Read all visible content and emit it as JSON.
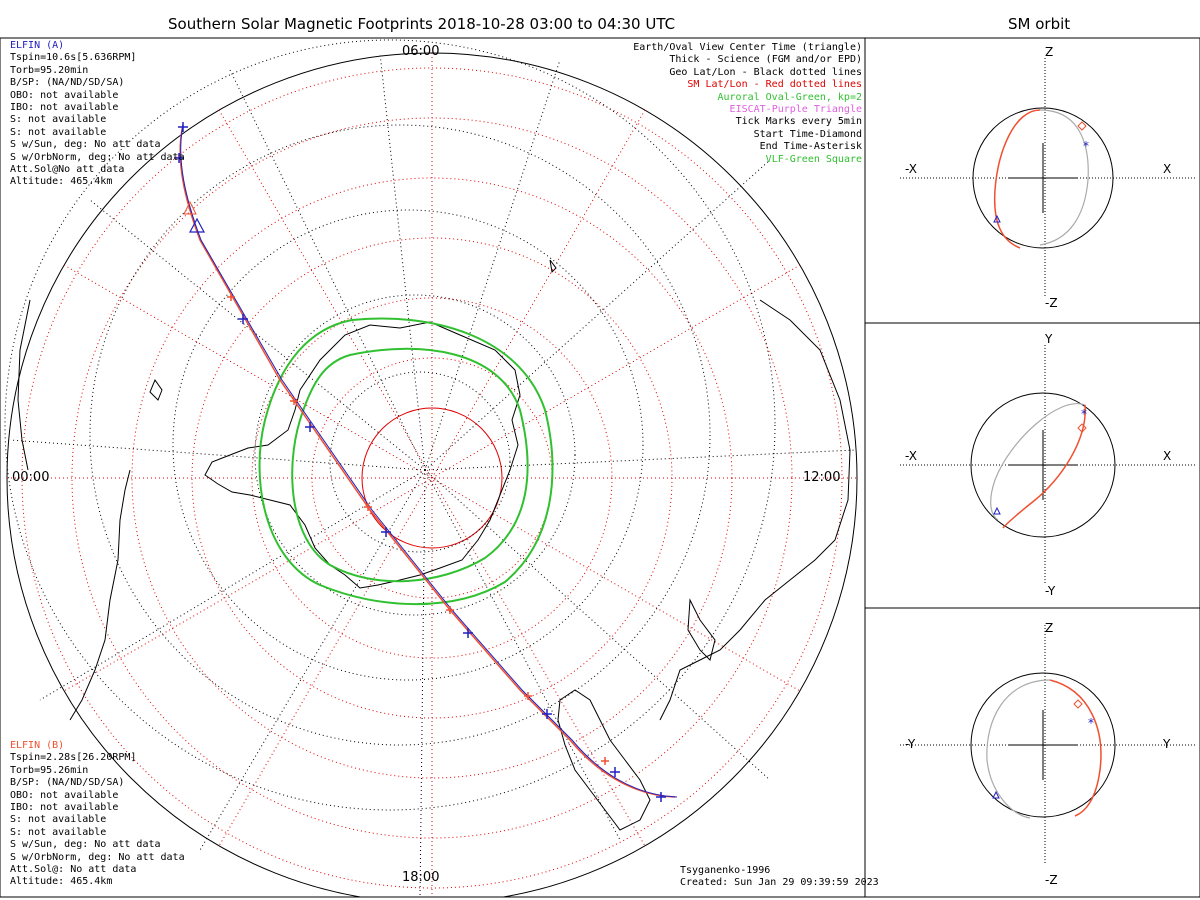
{
  "title": "Southern Solar Magnetic Footprints 2018-10-28 03:00 to 04:30 UTC",
  "orbit_title": "SM orbit",
  "mlt_labels": {
    "top": "06:00",
    "left": "00:00",
    "right": "12:00",
    "bottom": "18:00"
  },
  "elfin_a": {
    "header": "ELFIN (A)",
    "color": "#2020c0",
    "lines": [
      "Tspin=10.6s[5.636RPM]",
      "Torb=95.20min",
      "B/SP: (NA/ND/SD/SA)",
      "OBO: not available",
      "IBO: not available",
      "S: not available",
      "S: not available",
      "S w/Sun, deg: No att data",
      "S w/OrbNorm, deg: No att data",
      "Att.Sol@No att data",
      "Altitude: 465.4km"
    ]
  },
  "elfin_b": {
    "header": "ELFIN (B)",
    "color": "#f05030",
    "lines": [
      "Tspin=2.28s[26.20RPM]",
      "Torb=95.26min",
      "B/SP: (NA/ND/SD/SA)",
      "OBO: not available",
      "IBO: not available",
      "S: not available",
      "S: not available",
      "S w/Sun, deg: No att data",
      "S w/OrbNorm, deg: No att data",
      "Att.Sol@: No att data",
      "Altitude: 465.4km"
    ]
  },
  "legend": [
    {
      "text": "Earth/Oval View Center Time (triangle)",
      "color": "#000000"
    },
    {
      "text": "Thick - Science (FGM and/or EPD)",
      "color": "#000000"
    },
    {
      "text": "Geo Lat/Lon - Black dotted lines",
      "color": "#000000"
    },
    {
      "text": "SM Lat/Lon - Red dotted lines",
      "color": "#e00000"
    },
    {
      "text": "Auroral Oval-Green, kp=2",
      "color": "#30c030"
    },
    {
      "text": "EISCAT-Purple Triangle",
      "color": "#e060e0"
    },
    {
      "text": "Tick Marks every 5min",
      "color": "#000000"
    },
    {
      "text": "Start Time-Diamond",
      "color": "#000000"
    },
    {
      "text": "End Time-Asterisk",
      "color": "#000000"
    },
    {
      "text": "VLF-Green Square",
      "color": "#30c030"
    }
  ],
  "credits": {
    "model": "Tsyganenko-1996",
    "created": "Created: Sun Jan 29 09:39:59 2023"
  },
  "orbit_panels": [
    {
      "top": "Z",
      "bottom": "-Z",
      "left": "-X",
      "right": "X"
    },
    {
      "top": "Y",
      "bottom": "-Y",
      "left": "-X",
      "right": "X"
    },
    {
      "top": "Z",
      "bottom": "-Z",
      "left": "-Y",
      "right": "Y"
    }
  ],
  "colors": {
    "elfin_a_track": "#2020c0",
    "elfin_b_track": "#f05030",
    "oval": "#30c030",
    "sm_grid": "#e00000",
    "orbit_gray": "#aaaaaa"
  }
}
